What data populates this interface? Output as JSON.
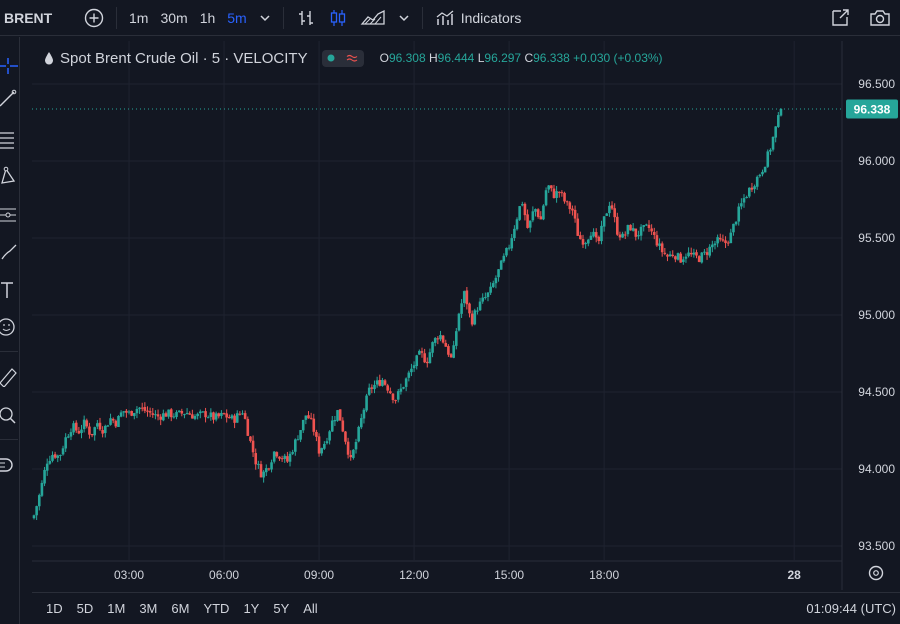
{
  "toolbar": {
    "symbol": "BRENT",
    "intervals": [
      "1m",
      "30m",
      "1h",
      "5m"
    ],
    "active_interval": "5m",
    "indicators_label": "Indicators"
  },
  "legend": {
    "title": "Spot Brent Crude Oil · 5 · VELOCITY",
    "o_label": "O",
    "o": "96.308",
    "h_label": "H",
    "h": "96.444",
    "l_label": "L",
    "l": "96.297",
    "c_label": "C",
    "c": "96.338",
    "change": "+0.030 (+0.03%)"
  },
  "ranges": [
    "1D",
    "5D",
    "1M",
    "3M",
    "6M",
    "YTD",
    "1Y",
    "5Y",
    "All"
  ],
  "clock": "01:09:44 (UTC)",
  "colors": {
    "background": "#131722",
    "up": "#26a69a",
    "down": "#ef5350",
    "grid": "#1f2330",
    "text": "#d1d4dc",
    "active": "#2962ff"
  },
  "chart_data": {
    "type": "candlestick",
    "ylim": [
      93.5,
      96.6
    ],
    "yticks": [
      "93.500",
      "94.000",
      "94.500",
      "95.000",
      "95.500",
      "96.000",
      "96.500"
    ],
    "xticks": [
      "03:00",
      "06:00",
      "09:00",
      "12:00",
      "15:00",
      "18:00",
      "28"
    ],
    "xtick_positions_hours": [
      3,
      6,
      9,
      12,
      15,
      18,
      24
    ],
    "x_range_hours": [
      0,
      25.1
    ],
    "last_price": "96.338",
    "close_path": [
      [
        0.0,
        93.7
      ],
      [
        0.2,
        93.85
      ],
      [
        0.4,
        94.05
      ],
      [
        0.6,
        94.1
      ],
      [
        0.8,
        94.08
      ],
      [
        1.0,
        94.2
      ],
      [
        1.2,
        94.28
      ],
      [
        1.4,
        94.24
      ],
      [
        1.6,
        94.3
      ],
      [
        1.8,
        94.22
      ],
      [
        2.0,
        94.3
      ],
      [
        2.2,
        94.25
      ],
      [
        2.4,
        94.33
      ],
      [
        2.6,
        94.3
      ],
      [
        2.8,
        94.38
      ],
      [
        3.0,
        94.36
      ],
      [
        3.3,
        94.4
      ],
      [
        3.6,
        94.37
      ],
      [
        3.9,
        94.34
      ],
      [
        4.2,
        94.36
      ],
      [
        4.5,
        94.35
      ],
      [
        4.8,
        94.37
      ],
      [
        5.1,
        94.34
      ],
      [
        5.4,
        94.36
      ],
      [
        5.7,
        94.33
      ],
      [
        6.0,
        94.35
      ],
      [
        6.3,
        94.32
      ],
      [
        6.6,
        94.38
      ],
      [
        6.8,
        94.2
      ],
      [
        7.0,
        94.05
      ],
      [
        7.2,
        93.96
      ],
      [
        7.4,
        94.02
      ],
      [
        7.6,
        94.12
      ],
      [
        7.8,
        94.08
      ],
      [
        8.0,
        94.05
      ],
      [
        8.2,
        94.15
      ],
      [
        8.4,
        94.25
      ],
      [
        8.6,
        94.36
      ],
      [
        8.8,
        94.28
      ],
      [
        9.0,
        94.12
      ],
      [
        9.2,
        94.18
      ],
      [
        9.4,
        94.3
      ],
      [
        9.6,
        94.38
      ],
      [
        9.8,
        94.22
      ],
      [
        10.0,
        94.05
      ],
      [
        10.2,
        94.2
      ],
      [
        10.4,
        94.38
      ],
      [
        10.6,
        94.52
      ],
      [
        10.8,
        94.55
      ],
      [
        11.0,
        94.58
      ],
      [
        11.2,
        94.52
      ],
      [
        11.4,
        94.45
      ],
      [
        11.6,
        94.52
      ],
      [
        11.8,
        94.6
      ],
      [
        12.0,
        94.68
      ],
      [
        12.2,
        94.75
      ],
      [
        12.4,
        94.7
      ],
      [
        12.6,
        94.82
      ],
      [
        12.8,
        94.88
      ],
      [
        13.0,
        94.8
      ],
      [
        13.2,
        94.7
      ],
      [
        13.4,
        95.0
      ],
      [
        13.6,
        95.15
      ],
      [
        13.8,
        94.95
      ],
      [
        14.0,
        95.05
      ],
      [
        14.2,
        95.1
      ],
      [
        14.4,
        95.15
      ],
      [
        14.6,
        95.25
      ],
      [
        14.8,
        95.35
      ],
      [
        15.0,
        95.45
      ],
      [
        15.2,
        95.6
      ],
      [
        15.4,
        95.75
      ],
      [
        15.6,
        95.55
      ],
      [
        15.8,
        95.7
      ],
      [
        16.0,
        95.62
      ],
      [
        16.2,
        95.85
      ],
      [
        16.4,
        95.78
      ],
      [
        16.6,
        95.8
      ],
      [
        16.8,
        95.72
      ],
      [
        17.0,
        95.68
      ],
      [
        17.2,
        95.5
      ],
      [
        17.4,
        95.48
      ],
      [
        17.6,
        95.55
      ],
      [
        17.8,
        95.45
      ],
      [
        18.0,
        95.62
      ],
      [
        18.2,
        95.75
      ],
      [
        18.4,
        95.55
      ],
      [
        18.6,
        95.5
      ],
      [
        18.8,
        95.58
      ],
      [
        19.0,
        95.52
      ],
      [
        19.2,
        95.55
      ],
      [
        19.4,
        95.57
      ],
      [
        19.6,
        95.5
      ],
      [
        19.8,
        95.42
      ],
      [
        20.0,
        95.38
      ],
      [
        20.2,
        95.4
      ],
      [
        20.4,
        95.36
      ],
      [
        20.6,
        95.4
      ],
      [
        20.8,
        95.38
      ],
      [
        21.0,
        95.37
      ],
      [
        21.2,
        95.4
      ],
      [
        21.4,
        95.45
      ],
      [
        21.6,
        95.48
      ],
      [
        21.8,
        95.46
      ],
      [
        22.0,
        95.52
      ],
      [
        22.2,
        95.65
      ],
      [
        22.4,
        95.75
      ],
      [
        22.6,
        95.82
      ],
      [
        22.8,
        95.88
      ],
      [
        23.0,
        95.95
      ],
      [
        23.2,
        96.05
      ],
      [
        23.4,
        96.2
      ],
      [
        23.6,
        96.34
      ]
    ]
  }
}
